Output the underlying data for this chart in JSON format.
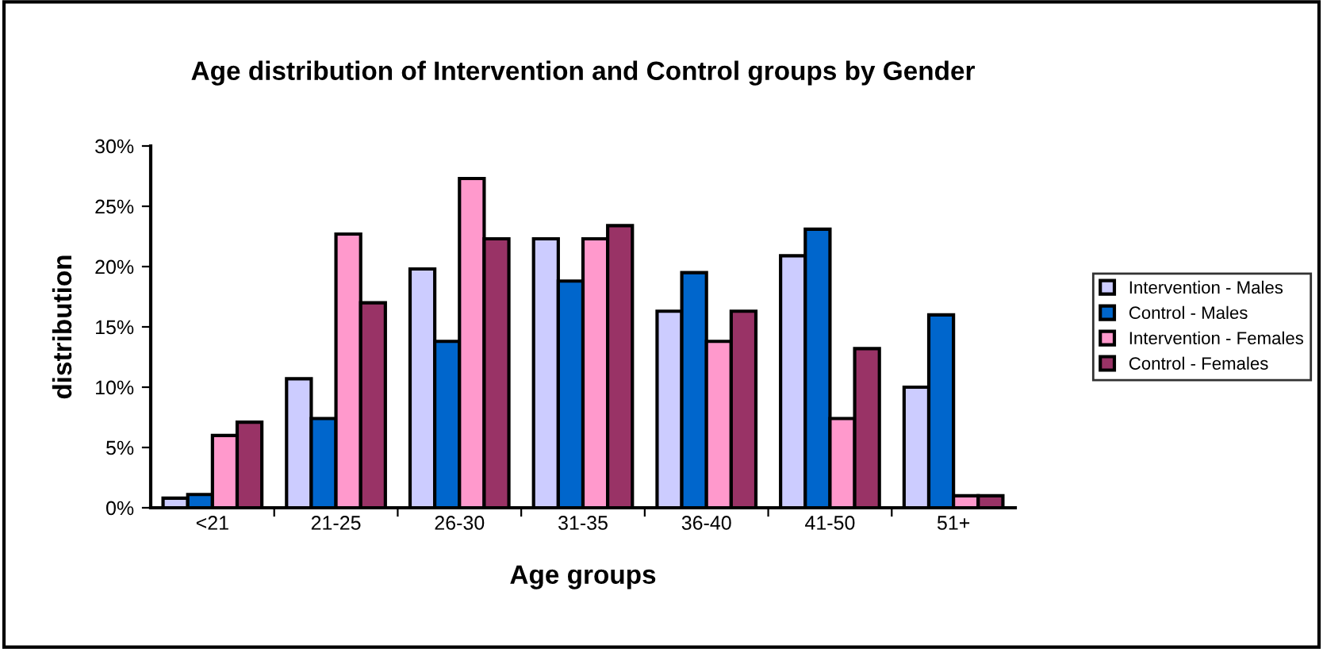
{
  "chart_data": {
    "type": "bar",
    "title": "Age distribution of Intervention and Control groups by Gender",
    "xlabel": "Age groups",
    "ylabel": "distribution",
    "categories": [
      "<21",
      "21-25",
      "26-30",
      "31-35",
      "36-40",
      "41-50",
      "51+"
    ],
    "series": [
      {
        "name": "Intervention - Males",
        "color": "#ccccff",
        "values": [
          0.8,
          10.7,
          19.8,
          22.3,
          16.3,
          20.9,
          10.0
        ]
      },
      {
        "name": "Control - Males",
        "color": "#0066cc",
        "values": [
          1.1,
          7.4,
          13.8,
          18.8,
          19.5,
          23.1,
          16.0
        ]
      },
      {
        "name": "Intervention - Females",
        "color": "#ff99cc",
        "values": [
          6.0,
          22.7,
          27.3,
          22.3,
          13.8,
          7.4,
          1.0
        ]
      },
      {
        "name": "Control - Females",
        "color": "#993366",
        "values": [
          7.1,
          17.0,
          22.3,
          23.4,
          16.3,
          13.2,
          1.0
        ]
      }
    ],
    "ylim": [
      0,
      30
    ],
    "yticks": [
      {
        "value": 0,
        "label": "0%"
      },
      {
        "value": 5,
        "label": "5%"
      },
      {
        "value": 10,
        "label": "10%"
      },
      {
        "value": 15,
        "label": "15%"
      },
      {
        "value": 20,
        "label": "20%"
      },
      {
        "value": 25,
        "label": "25%"
      },
      {
        "value": 30,
        "label": "30%"
      }
    ],
    "grid": false,
    "legend": "right"
  }
}
